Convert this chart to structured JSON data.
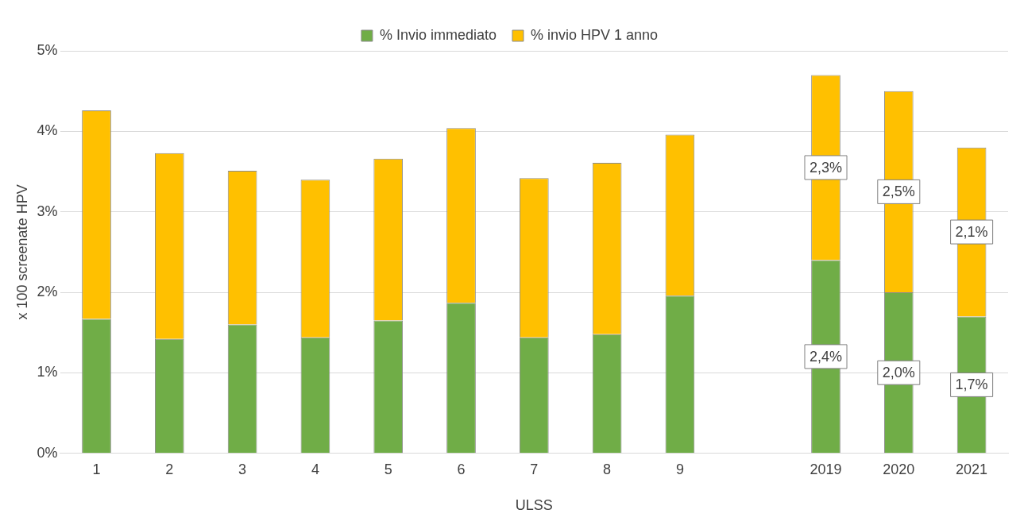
{
  "chart_data": {
    "type": "bar",
    "stacked": true,
    "xlabel": "ULSS",
    "ylabel": "x 100 screenate HPV",
    "categories": [
      "1",
      "2",
      "3",
      "4",
      "5",
      "6",
      "7",
      "8",
      "9",
      null,
      "2019",
      "2020",
      "2021"
    ],
    "series": [
      {
        "name": "% Invio immediato",
        "color": "#70ad47",
        "values": [
          1.67,
          1.42,
          1.6,
          1.44,
          1.65,
          1.87,
          1.44,
          1.48,
          1.96,
          null,
          2.4,
          2.0,
          1.7
        ],
        "value_labels": [
          null,
          null,
          null,
          null,
          null,
          null,
          null,
          null,
          null,
          null,
          "2,4%",
          "2,0%",
          "1,7%"
        ]
      },
      {
        "name": "% invio HPV 1 anno",
        "color": "#ffc000",
        "values": [
          2.59,
          2.31,
          1.91,
          1.96,
          2.01,
          2.17,
          1.98,
          2.13,
          2.0,
          null,
          2.3,
          2.5,
          2.1
        ],
        "value_labels": [
          null,
          null,
          null,
          null,
          null,
          null,
          null,
          null,
          null,
          null,
          "2,3%",
          "2,5%",
          "2,1%"
        ]
      }
    ],
    "ylim": [
      0,
      5
    ],
    "yticks": [
      {
        "value": 0,
        "label": "0%"
      },
      {
        "value": 1,
        "label": "1%"
      },
      {
        "value": 2,
        "label": "2%"
      },
      {
        "value": 3,
        "label": "3%"
      },
      {
        "value": 4,
        "label": "4%"
      },
      {
        "value": 5,
        "label": "5%"
      }
    ],
    "grid": "y",
    "legend": "top"
  }
}
